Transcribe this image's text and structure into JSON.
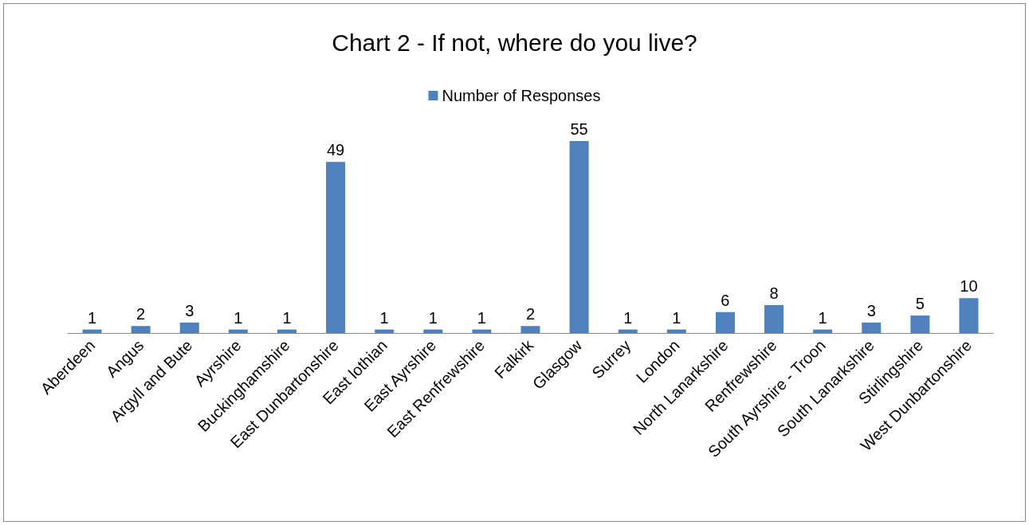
{
  "chart_data": {
    "type": "bar",
    "title": "Chart 2 - If not, where do you live?",
    "categories": [
      "Aberdeen",
      "Angus",
      "Argyll and Bute",
      "Ayrshire",
      "Buckinghamshire",
      "East Dunbartonshire",
      "East lothian",
      "East Ayrshire",
      "East Renfrewshire",
      "Falkirk",
      "Glasgow",
      "Surrey",
      "London",
      "North Lanarkshire",
      "Renfrewshire",
      "South Ayrshire - Troon",
      "South Lanarkshire",
      "Stirlingshire",
      "West Dunbartonshire"
    ],
    "series": [
      {
        "name": "Number of Responses",
        "color": "#4f81bd",
        "values": [
          1,
          2,
          3,
          1,
          1,
          49,
          1,
          1,
          1,
          2,
          55,
          1,
          1,
          6,
          8,
          1,
          3,
          5,
          10
        ]
      }
    ],
    "data_labels": true,
    "legend": "top",
    "grid": false
  }
}
